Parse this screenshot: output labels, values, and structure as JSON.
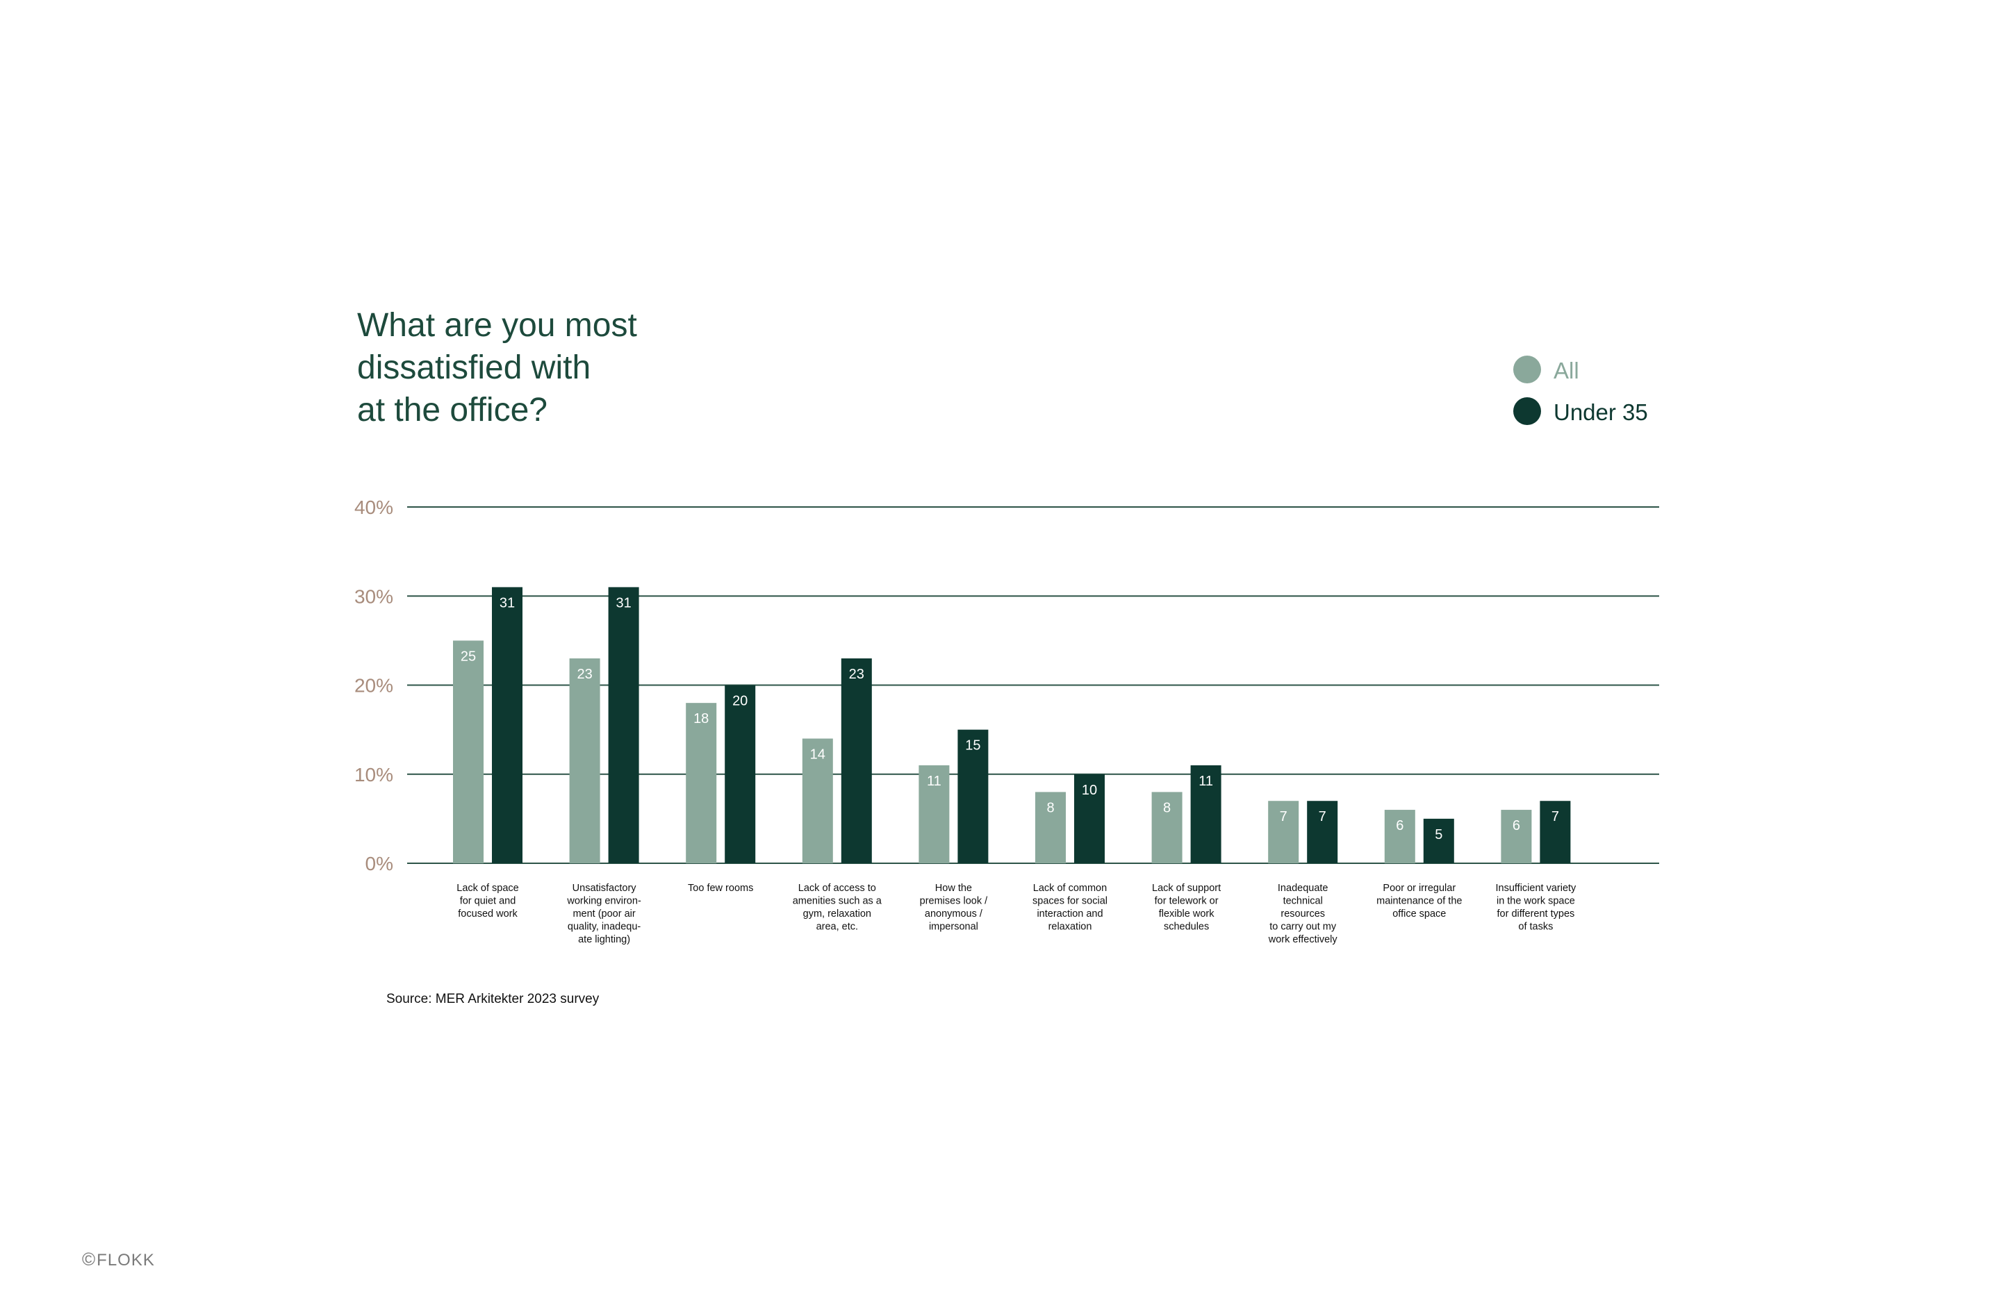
{
  "title_lines": [
    "What are you most",
    "dissatisfied with",
    "at the office?"
  ],
  "source": "Source: MER Arkitekter 2023 survey",
  "logo": {
    "mark": "©",
    "text": "FLOKK"
  },
  "colors": {
    "all": "#8aa89b",
    "under35": "#0d3830",
    "title": "#1d4a3c",
    "axis_tick": "#a88c7c",
    "gridline": "#2d5448"
  },
  "legend": [
    {
      "label": "All",
      "color": "#8aa89b"
    },
    {
      "label": "Under 35",
      "color": "#0d3830"
    }
  ],
  "chart_data": {
    "type": "bar",
    "title": "What are you most dissatisfied with at the office?",
    "ylim": [
      0,
      40
    ],
    "yticks": [
      "0%",
      "10%",
      "20%",
      "30%",
      "40%"
    ],
    "yticks_values": [
      0,
      10,
      20,
      30,
      40
    ],
    "grid": true,
    "legend_position": "top-right",
    "categories": [
      [
        "Lack of space",
        "for quiet and",
        "focused work"
      ],
      [
        "Unsatisfactory",
        "working environ-",
        "ment (poor air",
        "quality, inadequ-",
        "ate lighting)"
      ],
      [
        "Too few rooms"
      ],
      [
        "Lack of access to",
        "amenities such as a",
        "gym, relaxation",
        "area, etc."
      ],
      [
        "How the",
        "premises look /",
        "anonymous /",
        "impersonal"
      ],
      [
        "Lack of common",
        "spaces for social",
        "interaction and",
        "relaxation"
      ],
      [
        "Lack of support",
        "for telework or",
        "flexible work",
        "schedules"
      ],
      [
        "Inadequate",
        "technical",
        "resources",
        "to carry out my",
        "work effectively"
      ],
      [
        "Poor or irregular",
        "maintenance of the",
        "office space"
      ],
      [
        "Insufficient variety",
        "in the work space",
        "for different types",
        "of tasks"
      ]
    ],
    "series": [
      {
        "name": "All",
        "values": [
          25,
          23,
          18,
          14,
          11,
          8,
          8,
          7,
          6,
          6
        ]
      },
      {
        "name": "Under 35",
        "values": [
          31,
          31,
          20,
          23,
          15,
          10,
          11,
          7,
          5,
          7
        ]
      }
    ]
  }
}
